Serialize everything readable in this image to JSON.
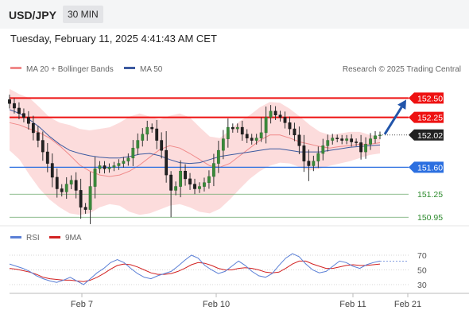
{
  "header": {
    "symbol": "USD/JPY",
    "timeframe": "30 MIN"
  },
  "datetime": "Tuesday, February 11, 2025 4:41:43 AM CET",
  "legend": {
    "bollinger": "MA 20 + Bollinger Bands",
    "ma50": "MA 50",
    "credit": "Research © 2025 Trading Central"
  },
  "colors": {
    "resistance": "#ee1111",
    "support": "#2b6fe0",
    "target": "#2e8b2e",
    "current": "#222222",
    "arrow": "#2255aa",
    "band": "#fcd6d6",
    "ma20": "#f08a8a",
    "ma50": "#3c5aa0",
    "rsi": "#5a7fd6",
    "rsi_ma": "#d22222"
  },
  "chart_data": {
    "type": "candlestick",
    "symbol": "USD/JPY",
    "timeframe": "30 MIN",
    "x_ticks": [
      "Feb 7",
      "Feb 10",
      "Feb 11",
      "Feb 21"
    ],
    "ylim": [
      150.88,
      152.68
    ],
    "levels": [
      {
        "value": 152.5,
        "label": "152.50",
        "type": "resistance"
      },
      {
        "value": 152.25,
        "label": "152.25",
        "type": "resistance"
      },
      {
        "value": 152.02,
        "label": "152.02",
        "type": "current"
      },
      {
        "value": 151.6,
        "label": "151.60",
        "type": "support"
      },
      {
        "value": 151.25,
        "label": "151.25",
        "type": "target"
      },
      {
        "value": 150.95,
        "label": "150.95",
        "type": "target"
      }
    ],
    "close_series": [
      152.43,
      152.37,
      152.3,
      152.25,
      152.17,
      152.05,
      151.95,
      151.8,
      151.65,
      151.47,
      151.32,
      151.28,
      151.38,
      151.43,
      151.3,
      151.08,
      151.05,
      151.35,
      151.58,
      151.62,
      151.58,
      151.6,
      151.62,
      151.65,
      151.68,
      151.72,
      151.85,
      151.95,
      152.03,
      152.12,
      152.1,
      151.95,
      151.82,
      151.5,
      151.3,
      151.35,
      151.55,
      151.45,
      151.38,
      151.32,
      151.35,
      151.4,
      151.48,
      151.65,
      151.82,
      151.97,
      152.12,
      152.1,
      152.12,
      152.03,
      151.98,
      151.95,
      151.98,
      152.05,
      152.25,
      152.33,
      152.28,
      152.25,
      152.18,
      152.1,
      152.02,
      151.88,
      151.68,
      151.62,
      151.68,
      151.78,
      151.88,
      151.95,
      151.98,
      151.97,
      151.95,
      151.97,
      151.93,
      151.92,
      151.8,
      151.9,
      151.97,
      152.01,
      152.02
    ],
    "ma20": [
      152.18,
      152.15,
      152.1,
      152.05,
      151.98,
      151.88,
      151.76,
      151.63,
      151.55,
      151.5,
      151.48,
      151.5,
      151.55,
      151.63,
      151.73,
      151.83,
      151.88,
      151.85,
      151.78,
      151.7,
      151.62,
      151.6,
      151.65,
      151.75,
      151.85,
      151.95,
      152.02,
      152.02,
      151.98,
      151.93,
      151.9,
      151.87,
      151.85,
      151.87,
      151.88,
      151.9,
      151.9,
      151.92
    ],
    "ma50": [
      152.35,
      152.3,
      152.22,
      152.12,
      152.0,
      151.9,
      151.82,
      151.78,
      151.75,
      151.73,
      151.72,
      151.72,
      151.74,
      151.77,
      151.78,
      151.75,
      151.7,
      151.66,
      151.65,
      151.66,
      151.7,
      151.74,
      151.76,
      151.78,
      151.8,
      151.82,
      151.84,
      151.84,
      151.82,
      151.8,
      151.8,
      151.8,
      151.82,
      151.84,
      151.86,
      151.87,
      151.88,
      151.89
    ],
    "bb_upper": [
      152.62,
      152.55,
      152.5,
      152.38,
      152.25,
      152.18,
      152.15,
      152.1,
      152.08,
      152.1,
      152.12,
      152.18,
      152.26,
      152.3,
      152.26,
      152.22,
      152.27,
      152.3,
      152.25,
      152.12,
      152.0,
      151.98,
      152.08,
      152.2,
      152.28,
      152.38,
      152.45,
      152.44,
      152.36,
      152.26,
      152.15,
      152.06,
      152.02,
      152.04,
      152.06,
      152.06,
      152.02,
      152.0
    ],
    "bb_lower": [
      151.82,
      151.7,
      151.5,
      151.32,
      151.18,
      151.08,
      151.0,
      150.98,
      151.0,
      151.08,
      151.12,
      151.1,
      151.02,
      150.98,
      151.0,
      151.05,
      151.1,
      151.12,
      151.08,
      151.02,
      151.0,
      151.06,
      151.18,
      151.32,
      151.45,
      151.55,
      151.62,
      151.66,
      151.65,
      151.6,
      151.56,
      151.58,
      151.62,
      151.65,
      151.68,
      151.72,
      151.76,
      151.78
    ],
    "rsi": {
      "levels": [
        70,
        50,
        30
      ],
      "legend": {
        "rsi": "RSI",
        "ma": "9MA"
      },
      "values": [
        58,
        55,
        52,
        48,
        42,
        38,
        35,
        33,
        36,
        40,
        35,
        30,
        38,
        46,
        52,
        60,
        64,
        60,
        52,
        45,
        40,
        38,
        42,
        45,
        48,
        55,
        63,
        70,
        66,
        56,
        50,
        45,
        48,
        55,
        62,
        56,
        48,
        42,
        40,
        45,
        56,
        66,
        72,
        68,
        58,
        50,
        46,
        48,
        55,
        62,
        60,
        55,
        52,
        57,
        60,
        62
      ],
      "ma": [
        52,
        51,
        49,
        47,
        44,
        40,
        38,
        37,
        36,
        36,
        35,
        34,
        36,
        40,
        45,
        51,
        56,
        58,
        57,
        54,
        50,
        46,
        44,
        44,
        45,
        48,
        52,
        57,
        60,
        59,
        56,
        52,
        50,
        50,
        52,
        53,
        52,
        50,
        47,
        46,
        47,
        52,
        58,
        62,
        62,
        58,
        55,
        52,
        52,
        54,
        56,
        57,
        56,
        56,
        57,
        58
      ]
    }
  }
}
